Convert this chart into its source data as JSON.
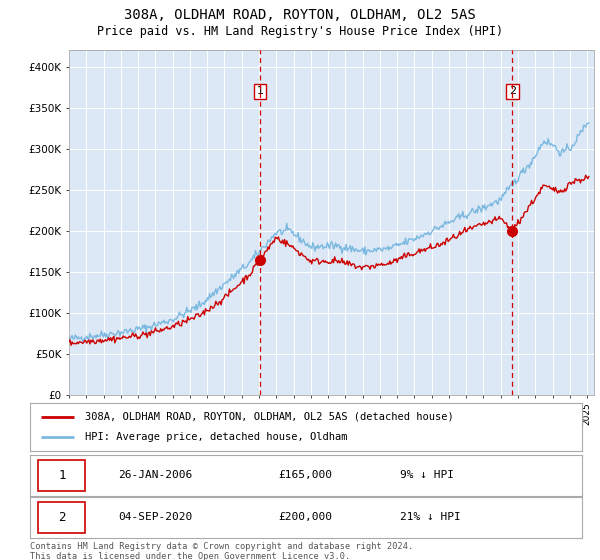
{
  "title": "308A, OLDHAM ROAD, ROYTON, OLDHAM, OL2 5AS",
  "subtitle": "Price paid vs. HM Land Registry's House Price Index (HPI)",
  "ylim": [
    0,
    420000
  ],
  "yticks": [
    0,
    50000,
    100000,
    150000,
    200000,
    250000,
    300000,
    350000,
    400000
  ],
  "ytick_labels": [
    "£0",
    "£50K",
    "£100K",
    "£150K",
    "£200K",
    "£250K",
    "£300K",
    "£350K",
    "£400K"
  ],
  "plot_bg_color": "#dce8f5",
  "hpi_color": "#7ab8e0",
  "price_color": "#cc0000",
  "vline_color": "#cc0000",
  "transaction1": {
    "date": "26-JAN-2006",
    "price": 165000,
    "label": "1",
    "pct": "9% ↓ HPI"
  },
  "transaction2": {
    "date": "04-SEP-2020",
    "price": 200000,
    "label": "2",
    "pct": "21% ↓ HPI"
  },
  "legend_entry1": "308A, OLDHAM ROAD, ROYTON, OLDHAM, OL2 5AS (detached house)",
  "legend_entry2": "HPI: Average price, detached house, Oldham",
  "footer": "Contains HM Land Registry data © Crown copyright and database right 2024.\nThis data is licensed under the Open Government Licence v3.0.",
  "hpi_anchors_x": [
    1995.0,
    1996.5,
    1998.0,
    1999.5,
    2001.0,
    2002.5,
    2004.0,
    2005.5,
    2007.0,
    2007.8,
    2009.0,
    2010.5,
    2012.0,
    2013.5,
    2015.0,
    2016.5,
    2018.0,
    2019.0,
    2020.0,
    2021.0,
    2021.8,
    2022.5,
    2023.0,
    2023.5,
    2024.0,
    2024.5,
    2025.1
  ],
  "hpi_anchors_y": [
    68000,
    72000,
    76000,
    82000,
    92000,
    108000,
    135000,
    162000,
    198000,
    200000,
    180000,
    182000,
    175000,
    178000,
    190000,
    205000,
    220000,
    228000,
    238000,
    265000,
    285000,
    310000,
    305000,
    295000,
    300000,
    315000,
    335000
  ],
  "price_anchors_x": [
    1995.0,
    1996.5,
    1998.0,
    1999.5,
    2001.0,
    2002.5,
    2004.0,
    2005.5,
    2006.08,
    2007.0,
    2007.8,
    2009.0,
    2010.5,
    2012.0,
    2013.5,
    2015.0,
    2016.5,
    2018.0,
    2019.0,
    2020.0,
    2020.67,
    2021.5,
    2022.5,
    2023.0,
    2023.5,
    2024.0,
    2024.5,
    2025.1
  ],
  "price_anchors_y": [
    63000,
    66000,
    69000,
    74000,
    83000,
    96000,
    118000,
    148000,
    165000,
    192000,
    182000,
    163000,
    163000,
    155000,
    160000,
    173000,
    183000,
    200000,
    208000,
    215000,
    200000,
    225000,
    255000,
    250000,
    248000,
    258000,
    262000,
    265000
  ]
}
